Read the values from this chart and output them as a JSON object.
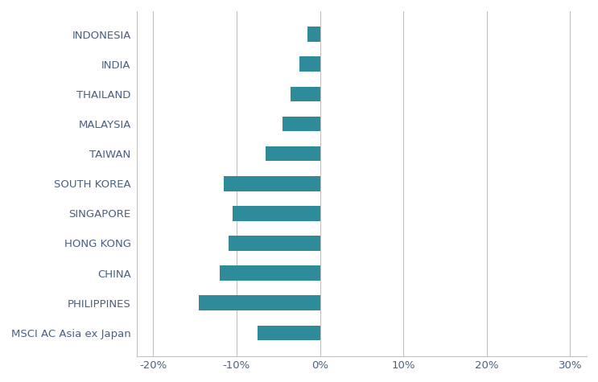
{
  "categories": [
    "INDONESIA",
    "INDIA",
    "THAILAND",
    "MALAYSIA",
    "TAIWAN",
    "SOUTH KOREA",
    "SINGAPORE",
    "HONG KONG",
    "CHINA",
    "PHILIPPINES",
    "MSCI AC Asia ex Japan"
  ],
  "values": [
    -1.5,
    -2.5,
    -3.5,
    -4.5,
    -6.5,
    -11.5,
    -10.5,
    -11.0,
    -12.0,
    -14.5,
    -7.5
  ],
  "bar_color": "#2e8b9a",
  "xlim": [
    -22,
    32
  ],
  "xticks": [
    -20,
    -10,
    0,
    10,
    20,
    30
  ],
  "xtick_labels": [
    "-20%",
    "-10%",
    "0%",
    "10%",
    "20%",
    "30%"
  ],
  "label_color": "#4a6080",
  "background_color": "#ffffff",
  "grid_color": "#c0c0c0",
  "bar_height": 0.5,
  "figsize": [
    7.43,
    4.75
  ],
  "dpi": 100
}
